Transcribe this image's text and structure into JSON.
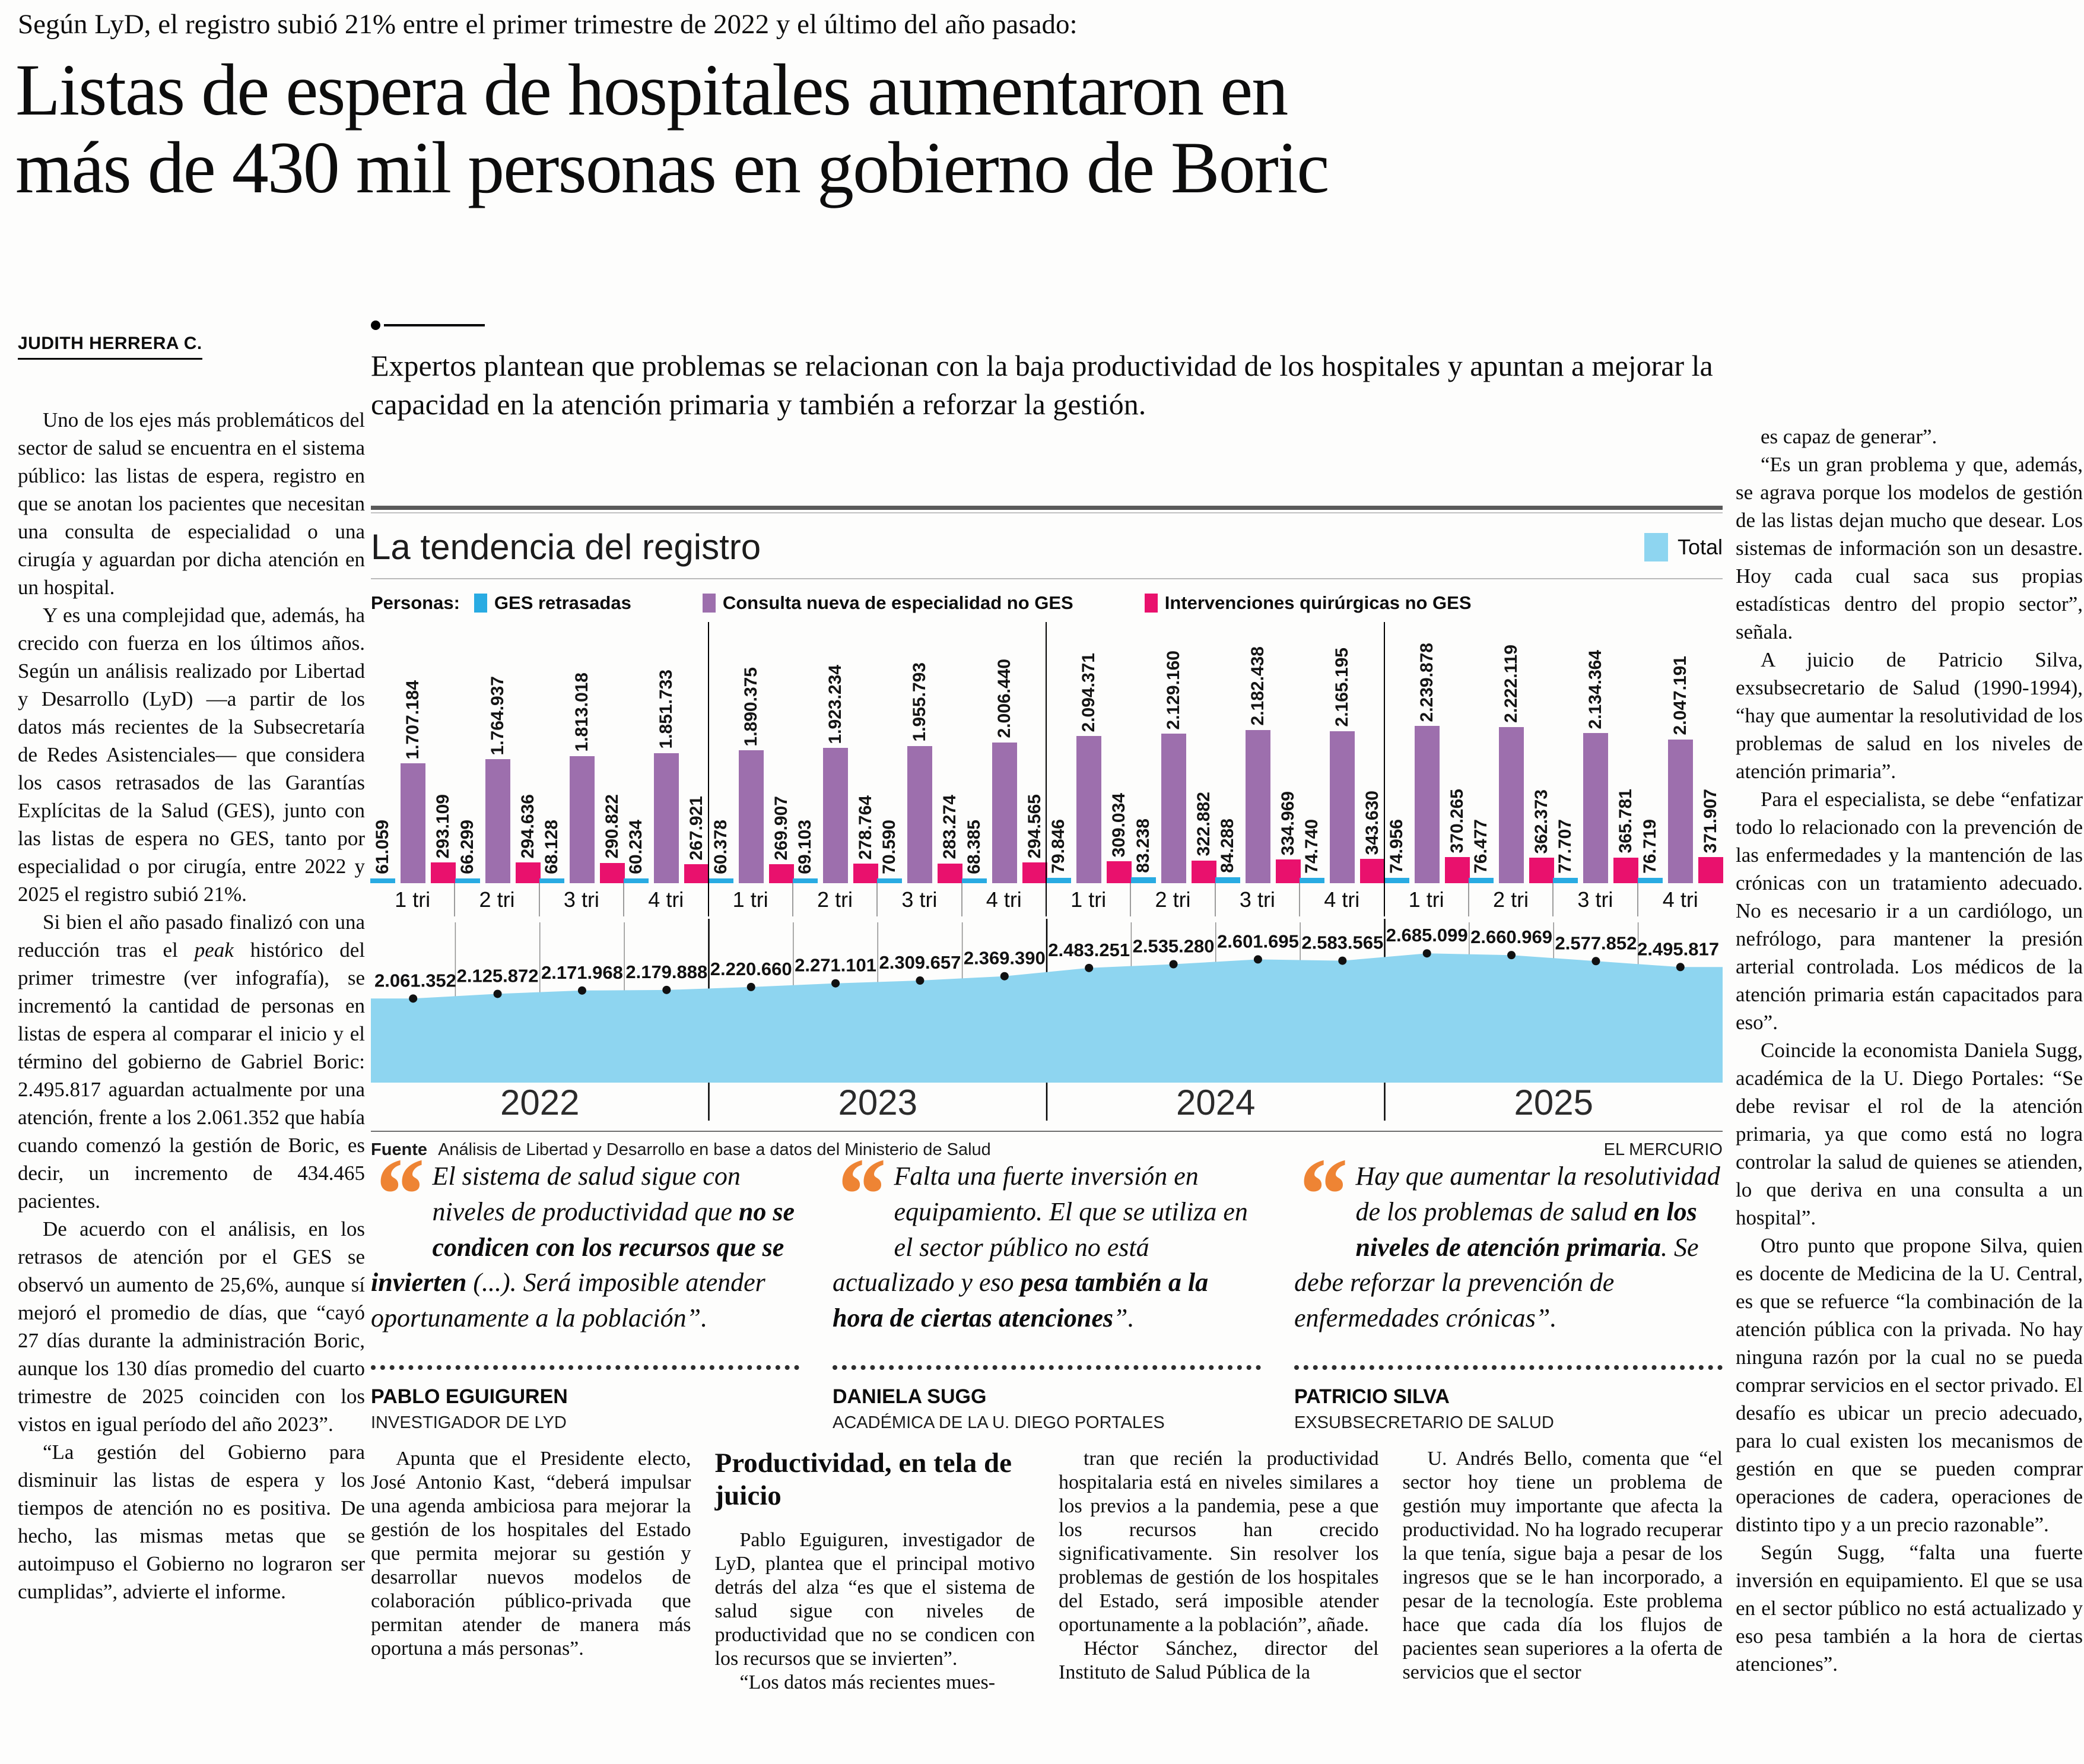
{
  "kicker": "Según LyD, el registro subió 21% entre el primer trimestre de 2022 y el último del año pasado:",
  "headline_line1": "Listas de espera de hospitales aumentaron en",
  "headline_line2": "más de 430 mil personas en gobierno de Boric",
  "byline": "JUDITH HERRERA C.",
  "subtitle": "Expertos plantean que problemas se relacionan con la baja productividad de los hospitales y apuntan a mejorar la capacidad en la atención primaria y también a reforzar la gestión.",
  "left_column": {
    "paragraphs": [
      "Uno de los ejes más problemáticos del sector de salud se encuentra en el sistema público: las listas de espera, registro en que se anotan los pacientes que necesitan una consulta de especialidad o una cirugía y aguardan por dicha atención en un hospital.",
      "Y es una complejidad que, además, ha crecido con fuerza en los últimos años. Según un análisis realizado por Libertad y Desarrollo (LyD) —a partir de los datos más recientes de la Subsecretaría de Redes Asistenciales— que considera los casos retrasados de las Garantías Explícitas de la Salud (GES), junto con las listas de espera no GES, tanto por especialidad o por cirugía, entre 2022 y 2025 el registro subió 21%.",
      "Si bien el año pasado finalizó con una reducción tras el *peak* histórico del primer trimestre (ver infografía), se incrementó la cantidad de personas en listas de espera al comparar el inicio y el término del gobierno de Gabriel Boric: 2.495.817 aguardan actualmente por una atención, frente a los 2.061.352 que había cuando comenzó la gestión de Boric, es decir, un incremento de 434.465 pacientes.",
      "De acuerdo con el análisis, en los retrasos de atención por el GES se observó un aumento de 25,6%, aunque sí mejoró el promedio de días, que “cayó 27 días durante la administración Boric, aunque los 130 días promedio del cuarto trimestre de 2025 coinciden con los vistos en igual período del año 2023”.",
      "“La gestión del Gobierno para disminuir las listas de espera y los tiempos de atención no es positiva. De hecho, las mismas metas que se autoimpuso el Gobierno no lograron ser cumplidas”, advierte el informe."
    ]
  },
  "right_column": {
    "paragraphs": [
      "es capaz de generar”.",
      "“Es un gran problema y que, además, se agrava porque los modelos de gestión de las listas dejan mucho que desear. Los sistemas de información son un desastre. Hoy cada cual saca sus propias estadísticas dentro del propio sector”, señala.",
      "A juicio de Patricio Silva, exsubsecretario de Salud (1990-1994), “hay que aumentar la resolutividad de los problemas de salud en los niveles de atención primaria”.",
      "Para el especialista, se debe “enfatizar todo lo relacionado con la prevención de las enfermedades y la mantención de las crónicas con un tratamiento adecuado. No es necesario ir a un cardiólogo, un nefrólogo, para mantener la presión arterial controlada. Los médicos de la atención primaria están capacitados para eso”.",
      "Coincide la economista Daniela Sugg, académica de la U. Diego Portales: “Se debe revisar el rol de la atención primaria, ya que como está no logra controlar la salud de quienes se atienden, lo que deriva en una consulta a un hospital”.",
      "Otro punto que propone Silva, quien es docente de Medicina de la U. Central, es que se refuerce “la combinación de la atención pública con la privada. No hay ninguna razón por la cual no se pueda comprar servicios en el sector privado. El desafío es ubicar un precio adecuado, para lo cual existen los mecanismos de gestión en que se pueden comprar operaciones de cadera, operaciones de distinto tipo y a un precio razonable”.",
      "Según Sugg, “falta una fuerte inversión en equipamiento. El que se usa en el sector público no está actualizado y eso pesa también a la hora de ciertas atenciones”."
    ]
  },
  "bottom_columns": {
    "col1": [
      "Apunta que el Presidente electo, José Antonio Kast, “deberá impulsar una agenda ambiciosa para mejorar la gestión de los hospitales del Estado que permita mejorar su gestión y desarrollar nuevos modelos de colaboración público-privada que permitan atender de manera más oportuna a más personas”."
    ],
    "col2_heading": "Productividad, en tela de juicio",
    "col2": [
      "Pablo Eguiguren, investigador de LyD, plantea que el principal motivo detrás del alza “es que el sistema de salud sigue con niveles de productividad que no se condicen con los recursos que se invierten”.",
      "“Los datos más recientes mues-"
    ],
    "col3": [
      "tran que recién la productividad hospitalaria está en niveles similares a los previos a la pandemia, pese a que los recursos han crecido significativamente. Sin resolver los problemas de gestión de los hospitales del Estado, será imposible atender oportunamente a la población”, añade.",
      "Héctor Sánchez, director del Instituto de Salud Pública de la"
    ],
    "col4": [
      "U. Andrés Bello, comenta que “el sector hoy tiene un problema de gestión muy importante que afecta la productividad. No ha logrado recuperar la que tenía, sigue baja a pesar de los ingresos que se le han incorporado, a pesar de la tecnología. Este problema hace que cada día los flujos de pacientes sean superiores a la oferta de servicios que el sector"
    ]
  },
  "chart": {
    "title": "La tendencia del registro",
    "legend_prefix": "Personas:",
    "total_label": "Total",
    "source_label": "Fuente",
    "source_text": "Análisis de Libertad y Desarrollo en base a datos del Ministerio de Salud",
    "credit": "EL MERCURIO",
    "colors": {
      "ges": "#29abe2",
      "consulta": "#9d6fad",
      "intervenciones": "#e9116d",
      "total_area": "#8ed5f0",
      "accent_orange": "#ee8434"
    }
  },
  "chart_data": {
    "type": "bar+area",
    "years": [
      "2022",
      "2023",
      "2024",
      "2025"
    ],
    "quarters": [
      "1 tri",
      "2 tri",
      "3 tri",
      "4 tri"
    ],
    "series": [
      {
        "name": "GES retrasadas",
        "color_key": "ges",
        "values": [
          61059,
          66299,
          68128,
          60234,
          60378,
          69103,
          70590,
          68385,
          79846,
          83238,
          84288,
          74740,
          74956,
          76477,
          77707,
          76719
        ]
      },
      {
        "name": "Consulta nueva de especialidad no GES",
        "color_key": "consulta",
        "values": [
          1707184,
          1764937,
          1813018,
          1851733,
          1890375,
          1923234,
          1955793,
          2006440,
          2094371,
          2129160,
          2182438,
          2165195,
          2239878,
          2222119,
          2134364,
          2047191
        ]
      },
      {
        "name": "Intervenciones quirúrgicas no GES",
        "color_key": "intervenciones",
        "values": [
          293109,
          294636,
          290822,
          267921,
          269907,
          278764,
          283274,
          294565,
          309034,
          322882,
          334969,
          343630,
          370265,
          362373,
          365781,
          371907
        ]
      }
    ],
    "total": {
      "name": "Total",
      "values": [
        2061352,
        2125872,
        2171968,
        2179888,
        2220660,
        2271101,
        2309657,
        2369390,
        2483251,
        2535280,
        2601695,
        2583565,
        2685099,
        2660969,
        2577852,
        2495817
      ]
    },
    "ylabel": "Personas",
    "grid": true,
    "legend_position": "top"
  },
  "quotes": [
    {
      "text": "El sistema de salud sigue con niveles de productividad que **no se condicen con los recursos que se invierten** (...). Será imposible atender oportunamente a la población”.",
      "name": "PABLO EGUIGUREN",
      "role": "INVESTIGADOR DE LYD"
    },
    {
      "text": "Falta una fuerte inversión en equipamiento. El que se utiliza en el sector público no está actualizado y eso **pesa también a la hora de ciertas atenciones**”.",
      "name": "DANIELA SUGG",
      "role": "ACADÉMICA DE LA U. DIEGO PORTALES"
    },
    {
      "text": "Hay que aumentar la resolutividad de los problemas de salud **en los niveles de atención primaria**. Se debe reforzar la prevención de enfermedades crónicas”.",
      "name": "PATRICIO SILVA",
      "role": "EXSUBSECRETARIO DE SALUD"
    }
  ]
}
